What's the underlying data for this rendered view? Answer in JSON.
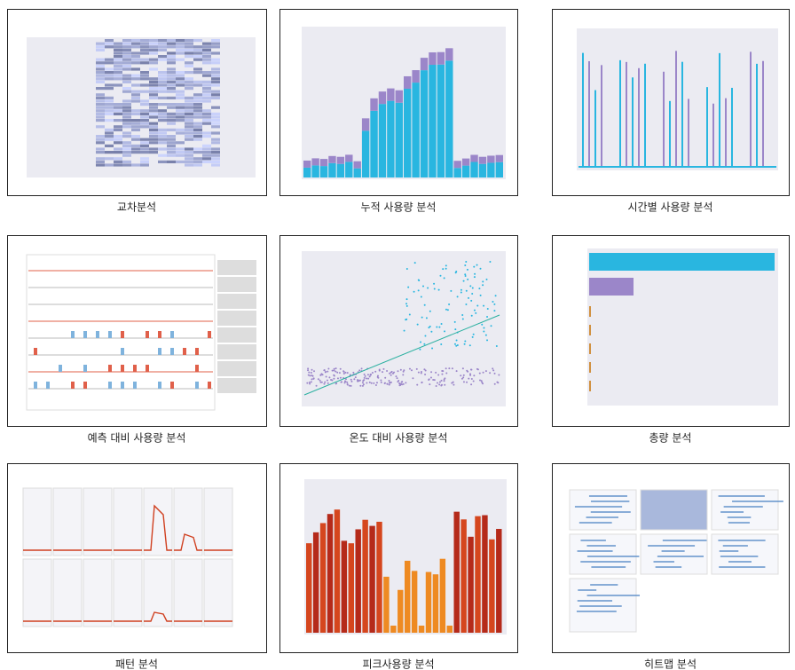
{
  "panels": [
    {
      "caption": "교차분석"
    },
    {
      "caption": "누적 사용량 분석"
    },
    {
      "caption": "시간별 사용량 분석"
    },
    {
      "caption": "예측 대비 사용량 분석"
    },
    {
      "caption": "온도 대비 사용량 분석"
    },
    {
      "caption": "총량 분석"
    },
    {
      "caption": "패턴 분석"
    },
    {
      "caption": "피크사용량 분석"
    },
    {
      "caption": "히트맵 분석"
    }
  ]
}
